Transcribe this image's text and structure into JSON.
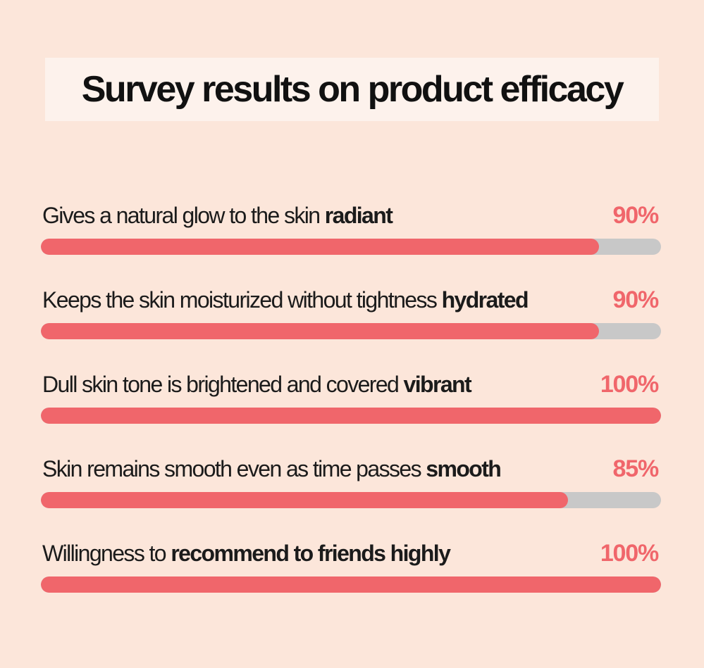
{
  "title": "Survey results on product efficacy",
  "colors": {
    "background": "#fce6da",
    "title_box": "#fdf2ec",
    "bar_fill": "#f0666b",
    "bar_track": "#c8c8c8",
    "percent_text": "#f0666b",
    "text": "#1b1b1b"
  },
  "chart_data": {
    "type": "bar",
    "orientation": "horizontal",
    "title": "Survey results on product efficacy",
    "xlim": [
      0,
      100
    ],
    "unit": "%",
    "categories": [
      "Gives a natural glow to the skin radiant",
      "Keeps the skin moisturized without tightness hydrated",
      "Dull skin tone is brightened and covered vibrant",
      "Skin remains smooth even as time passes smooth",
      "Willingness to recommend to friends highly"
    ],
    "values": [
      90,
      90,
      100,
      85,
      100
    ]
  },
  "rows": [
    {
      "label_normal": "Gives a natural glow to the skin ",
      "label_bold": "radiant",
      "percent_label": "90%",
      "value": 90
    },
    {
      "label_normal": "Keeps the skin moisturized without tightness ",
      "label_bold": "hydrated",
      "percent_label": "90%",
      "value": 90
    },
    {
      "label_normal": "Dull skin tone is brightened and covered ",
      "label_bold": "vibrant",
      "percent_label": "100%",
      "value": 100
    },
    {
      "label_normal": "Skin remains smooth even as time passes ",
      "label_bold": "smooth",
      "percent_label": "85%",
      "value": 85
    },
    {
      "label_normal": "Willingness to ",
      "label_bold": "recommend to friends highly",
      "percent_label": "100%",
      "value": 100
    }
  ]
}
